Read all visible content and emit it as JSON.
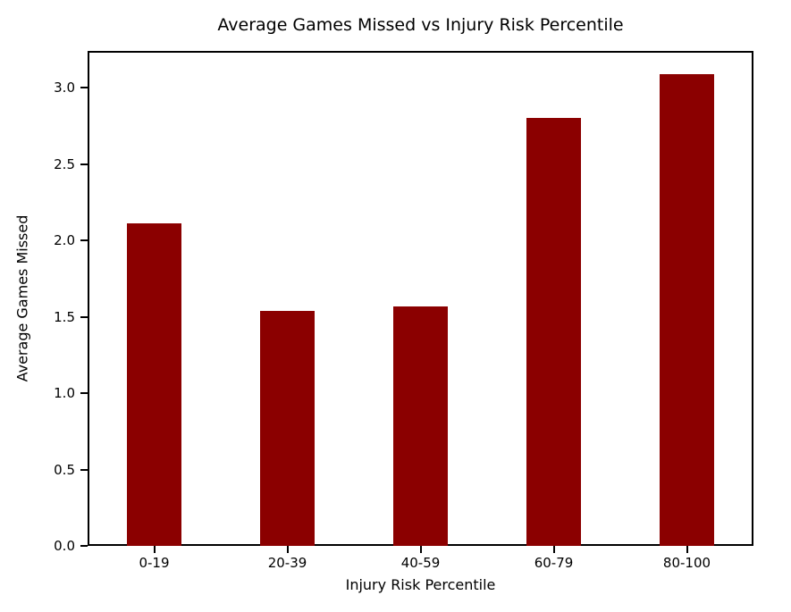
{
  "chart_data": {
    "type": "bar",
    "title": "Average Games Missed vs Injury Risk Percentile",
    "xlabel": "Injury Risk Percentile",
    "ylabel": "Average Games Missed",
    "categories": [
      "0-19",
      "20-39",
      "40-59",
      "60-79",
      "80-100"
    ],
    "values": [
      2.11,
      1.54,
      1.57,
      2.8,
      3.09
    ],
    "yticks": [
      0.0,
      0.5,
      1.0,
      1.5,
      2.0,
      2.5,
      3.0
    ],
    "ylim": [
      0,
      3.24
    ],
    "bar_color": "#8b0000",
    "axis_color": "#000000",
    "background_color": "#ffffff",
    "grid": false,
    "legend": null,
    "bar_width_fraction": 0.41
  }
}
